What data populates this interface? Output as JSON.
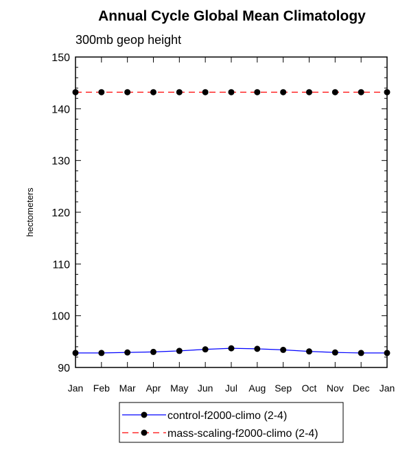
{
  "chart_data": {
    "type": "line",
    "title": "Annual Cycle Global Mean Climatology",
    "subtitle": "300mb geop height",
    "xlabel": "",
    "ylabel": "hectometers",
    "categories": [
      "Jan",
      "Feb",
      "Mar",
      "Apr",
      "May",
      "Jun",
      "Jul",
      "Aug",
      "Sep",
      "Oct",
      "Nov",
      "Dec",
      "Jan"
    ],
    "ylim": [
      90,
      150
    ],
    "yticks": [
      90,
      100,
      110,
      120,
      130,
      140,
      150
    ],
    "grid": false,
    "legend_position": "bottom",
    "series": [
      {
        "name": "control-f2000-climo (2-4)",
        "color": "#0000ff",
        "line_style": "solid",
        "values": [
          92.8,
          92.8,
          92.9,
          93.0,
          93.2,
          93.5,
          93.7,
          93.6,
          93.4,
          93.1,
          92.9,
          92.8,
          92.8
        ]
      },
      {
        "name": "mass-scaling-f2000-climo (2-4)",
        "color": "#ff0000",
        "line_style": "dashed",
        "values": [
          143.2,
          143.2,
          143.2,
          143.2,
          143.2,
          143.2,
          143.2,
          143.2,
          143.2,
          143.2,
          143.2,
          143.2,
          143.2
        ]
      }
    ]
  }
}
